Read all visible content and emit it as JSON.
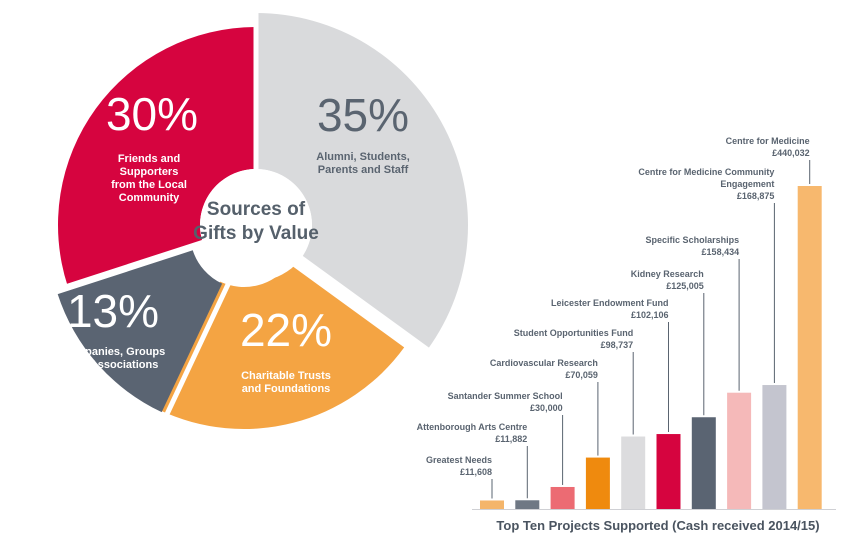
{
  "chart_data": [
    {
      "type": "pie",
      "title": "Sources of Gifts by Value",
      "slices": [
        {
          "value": 35,
          "pct_label": "35%",
          "label_lines": [
            "Alumni, Students,",
            "Parents and Staff"
          ],
          "color": "#d9dadc",
          "text_color": "#5a6470",
          "exploded": false
        },
        {
          "value": 22,
          "pct_label": "22%",
          "label_lines": [
            "Charitable Trusts",
            "and Foundations"
          ],
          "color": "#f4a443",
          "text_color": "#ffffff",
          "exploded": true
        },
        {
          "value": 13,
          "pct_label": "13%",
          "label_lines": [
            "Companies, Groups",
            "and Associations"
          ],
          "color": "#5a6472",
          "text_color": "#ffffff",
          "exploded": true
        },
        {
          "value": 30,
          "pct_label": "30%",
          "label_lines": [
            "Friends and",
            "Supporters",
            "from the Local",
            "Community"
          ],
          "color": "#d6043f",
          "text_color": "#ffffff",
          "exploded": false
        }
      ]
    },
    {
      "type": "bar",
      "title": "Top Ten Projects Supported (Cash received 2014/15)",
      "ylim": [
        0,
        440032
      ],
      "bars": [
        {
          "label_lines": [
            "Greatest Needs"
          ],
          "value_label": "£11,608",
          "value": 11608,
          "color": "#f4b56a"
        },
        {
          "label_lines": [
            "Attenborough Arts Centre"
          ],
          "value_label": "£11,882",
          "value": 11882,
          "color": "#6f7884"
        },
        {
          "label_lines": [
            "Santander Summer School"
          ],
          "value_label": "£30,000",
          "value": 30000,
          "color": "#ec6b73"
        },
        {
          "label_lines": [
            "Cardiovascular Research"
          ],
          "value_label": "£70,059",
          "value": 70059,
          "color": "#ef8a0e"
        },
        {
          "label_lines": [
            "Student Opportunities Fund"
          ],
          "value_label": "£98,737",
          "value": 98737,
          "color": "#dcdcde"
        },
        {
          "label_lines": [
            "Leicester Endowment Fund"
          ],
          "value_label": "£102,106",
          "value": 102106,
          "color": "#d6043f"
        },
        {
          "label_lines": [
            "Kidney Research"
          ],
          "value_label": "£125,005",
          "value": 125005,
          "color": "#5a6472"
        },
        {
          "label_lines": [
            "Specific Scholarships"
          ],
          "value_label": "£158,434",
          "value": 158434,
          "color": "#f5b9b9"
        },
        {
          "label_lines": [
            "Centre for Medicine Community",
            "Engagement"
          ],
          "value_label": "£168,875",
          "value": 168875,
          "color": "#c4c5cf"
        },
        {
          "label_lines": [
            "Centre for Medicine"
          ],
          "value_label": "£440,032",
          "value": 440032,
          "color": "#f7b86e"
        }
      ]
    }
  ]
}
